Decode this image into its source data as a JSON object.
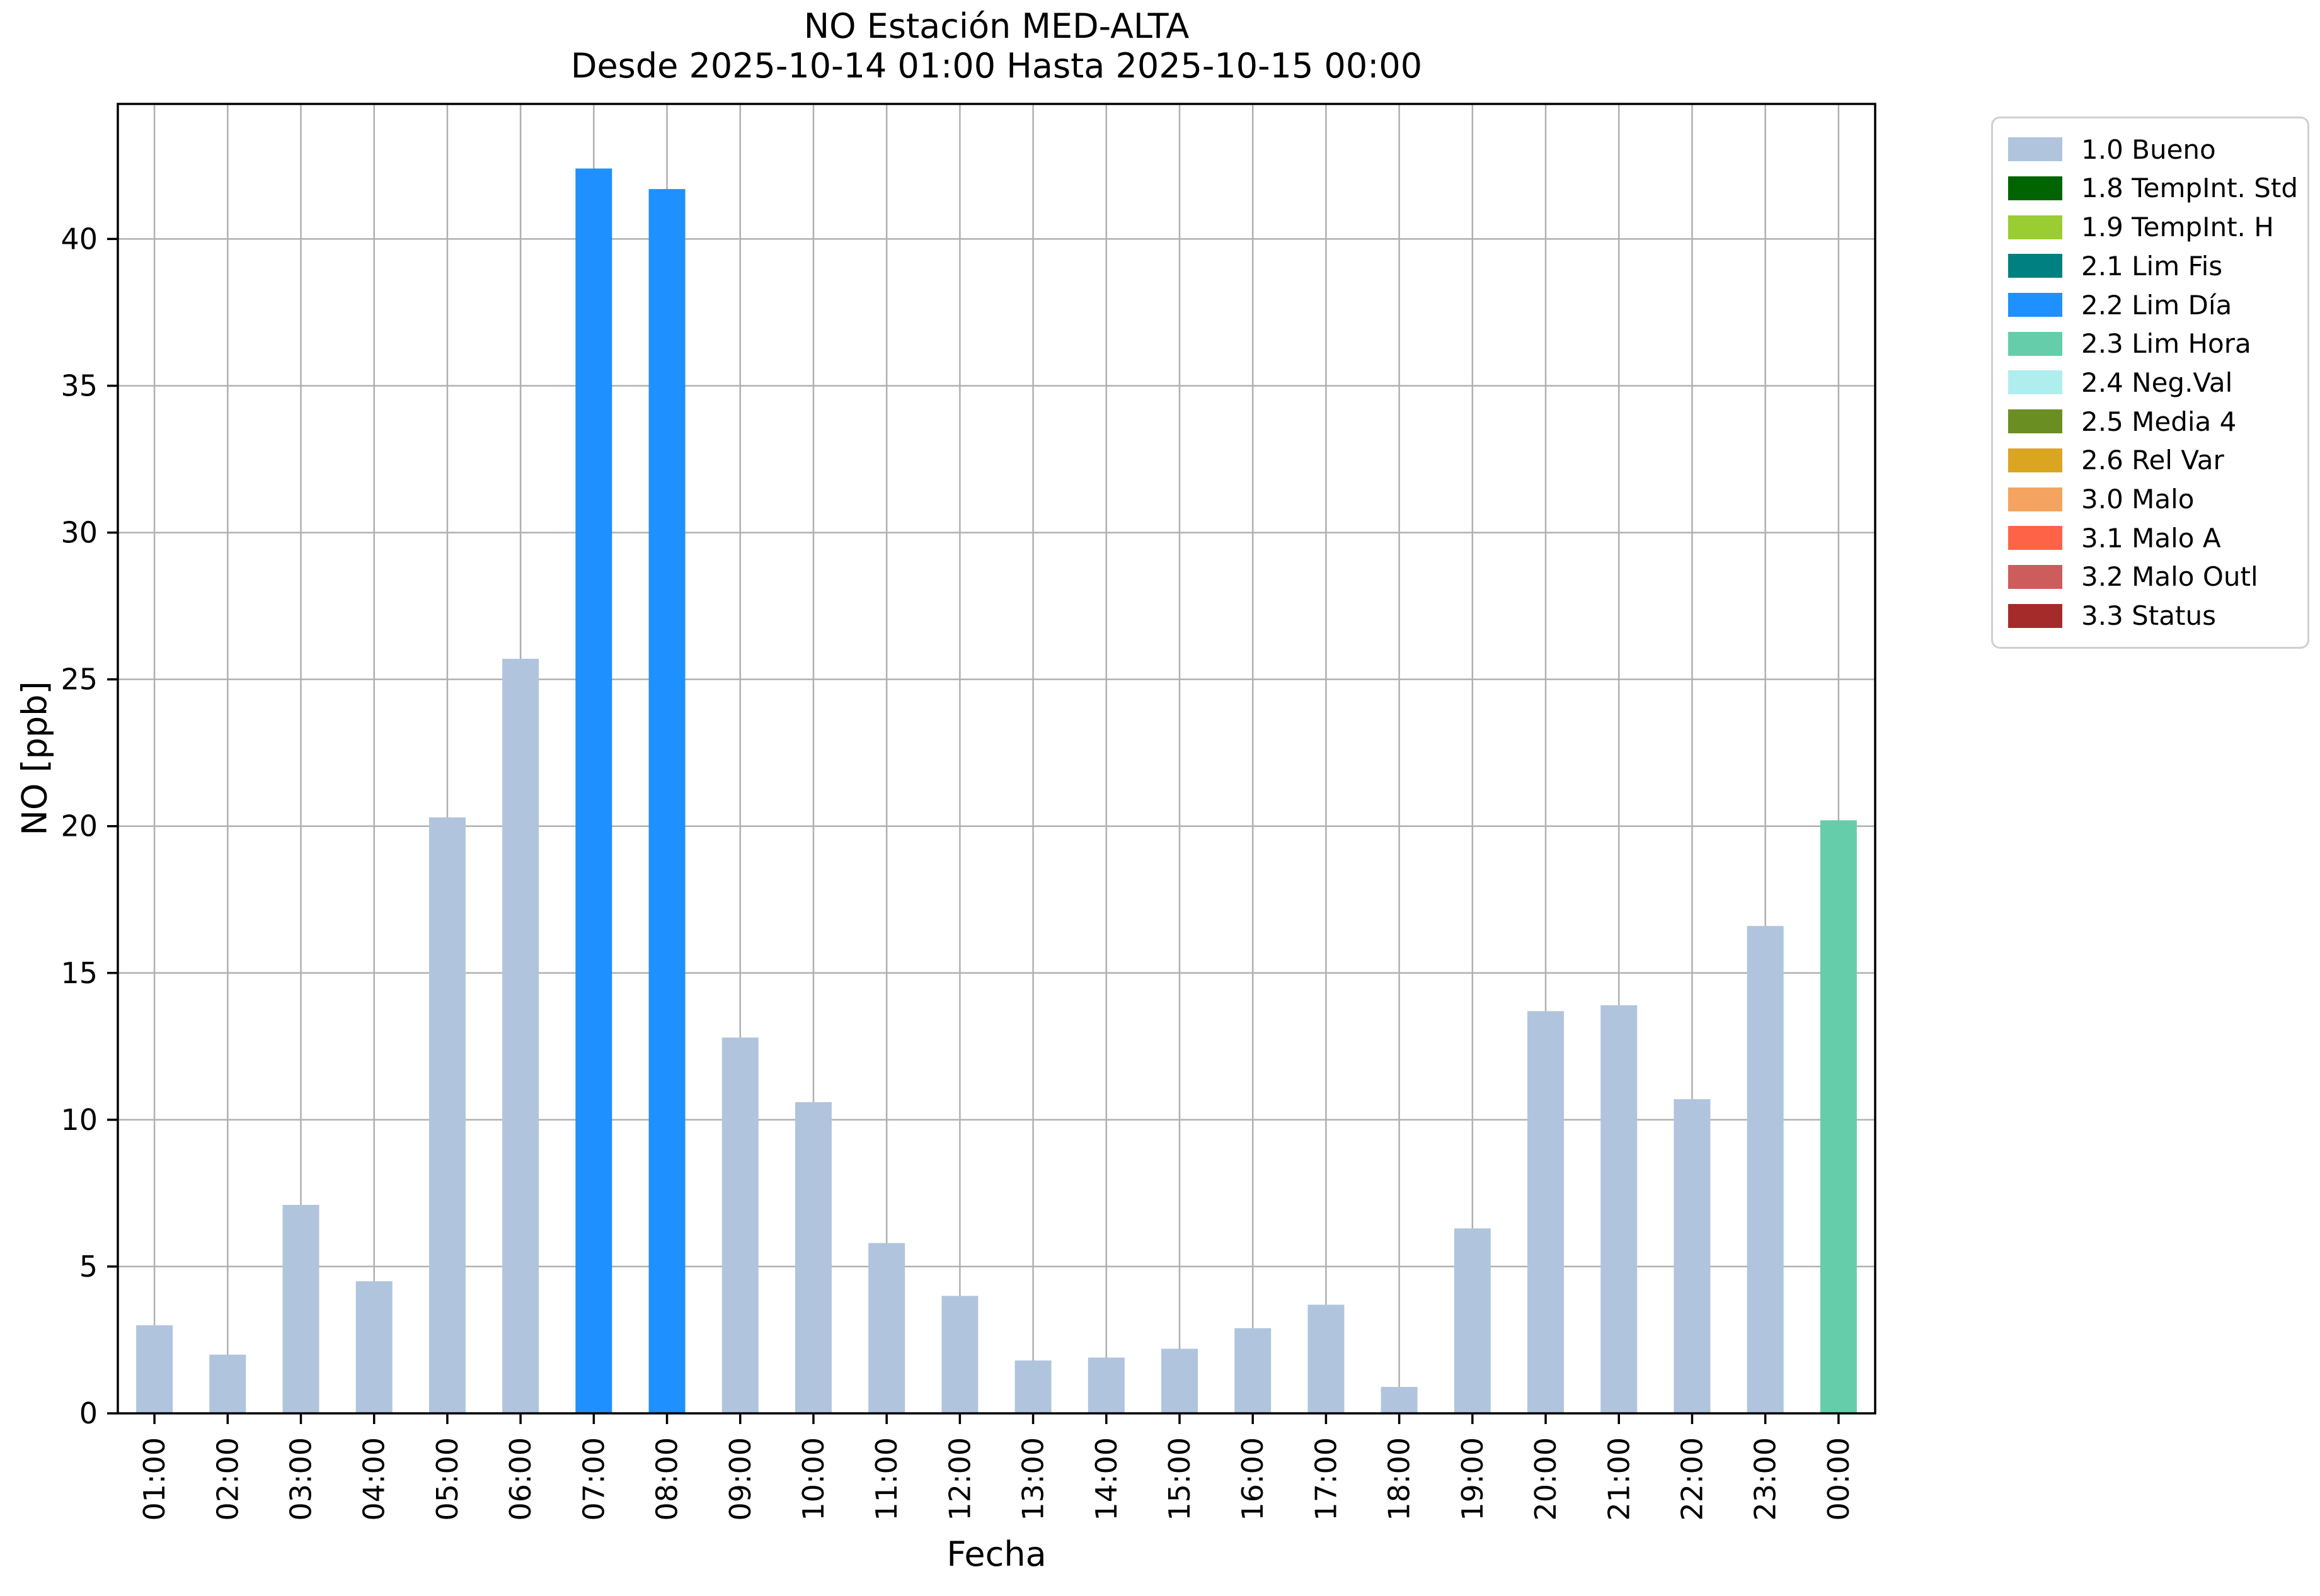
{
  "title": {
    "line1": "NO Estación MED-ALTA",
    "line2": "Desde 2025-10-14 01:00 Hasta 2025-10-15 00:00"
  },
  "axes": {
    "x_label": "Fecha",
    "y_label": "NO [ppb]",
    "y_ticks": [
      0,
      5,
      10,
      15,
      20,
      25,
      30,
      35,
      40
    ],
    "y_max": 44.6
  },
  "chart_data": {
    "type": "bar",
    "title": "NO Estación MED-ALTA",
    "subtitle": "Desde 2025-10-14 01:00 Hasta 2025-10-15 00:00",
    "xlabel": "Fecha",
    "ylabel": "NO [ppb]",
    "ylim": [
      0,
      44.6
    ],
    "grid": true,
    "legend_position": "upper right, outside axes",
    "categories": [
      "01:00",
      "02:00",
      "03:00",
      "04:00",
      "05:00",
      "06:00",
      "07:00",
      "08:00",
      "09:00",
      "10:00",
      "11:00",
      "12:00",
      "13:00",
      "14:00",
      "15:00",
      "16:00",
      "17:00",
      "18:00",
      "19:00",
      "20:00",
      "21:00",
      "22:00",
      "23:00",
      "00:00"
    ],
    "values": [
      3.0,
      2.0,
      7.1,
      4.5,
      20.3,
      25.7,
      42.4,
      41.7,
      12.8,
      10.6,
      5.8,
      4.0,
      1.8,
      1.9,
      2.2,
      2.9,
      3.7,
      0.9,
      6.3,
      13.7,
      13.9,
      10.7,
      16.6,
      20.2
    ],
    "bar_status": [
      "1.0 Bueno",
      "1.0 Bueno",
      "1.0 Bueno",
      "1.0 Bueno",
      "1.0 Bueno",
      "1.0 Bueno",
      "2.2 Lim Día",
      "2.2 Lim Día",
      "1.0 Bueno",
      "1.0 Bueno",
      "1.0 Bueno",
      "1.0 Bueno",
      "1.0 Bueno",
      "1.0 Bueno",
      "1.0 Bueno",
      "1.0 Bueno",
      "1.0 Bueno",
      "1.0 Bueno",
      "1.0 Bueno",
      "1.0 Bueno",
      "1.0 Bueno",
      "1.0 Bueno",
      "1.0 Bueno",
      "2.3 Lim Hora"
    ],
    "bar_colors": [
      "#b0c4de",
      "#b0c4de",
      "#b0c4de",
      "#b0c4de",
      "#b0c4de",
      "#b0c4de",
      "#1e90ff",
      "#1e90ff",
      "#b0c4de",
      "#b0c4de",
      "#b0c4de",
      "#b0c4de",
      "#b0c4de",
      "#b0c4de",
      "#b0c4de",
      "#b0c4de",
      "#b0c4de",
      "#b0c4de",
      "#b0c4de",
      "#b0c4de",
      "#b0c4de",
      "#b0c4de",
      "#b0c4de",
      "#66cdaa"
    ]
  },
  "legend": {
    "items": [
      {
        "label": "1.0 Bueno",
        "color": "#b0c4de"
      },
      {
        "label": "1.8 TempInt. Std",
        "color": "#006400"
      },
      {
        "label": "1.9 TempInt. H",
        "color": "#9acd32"
      },
      {
        "label": "2.1 Lim Fis",
        "color": "#008080"
      },
      {
        "label": "2.2 Lim Día",
        "color": "#1e90ff"
      },
      {
        "label": "2.3 Lim Hora",
        "color": "#66cdaa"
      },
      {
        "label": "2.4 Neg.Val",
        "color": "#afeeee"
      },
      {
        "label": "2.5 Media 4",
        "color": "#6b8e23"
      },
      {
        "label": "2.6 Rel Var",
        "color": "#daa520"
      },
      {
        "label": "3.0 Malo",
        "color": "#f4a460"
      },
      {
        "label": "3.1 Malo A",
        "color": "#ff6347"
      },
      {
        "label": "3.2 Malo Outl",
        "color": "#cd5c5c"
      },
      {
        "label": "3.3 Status",
        "color": "#a52a2a"
      }
    ]
  },
  "style": {
    "grid_color": "#b0b0b0",
    "spine_color": "#000000",
    "tick_label_color": "#000000"
  }
}
